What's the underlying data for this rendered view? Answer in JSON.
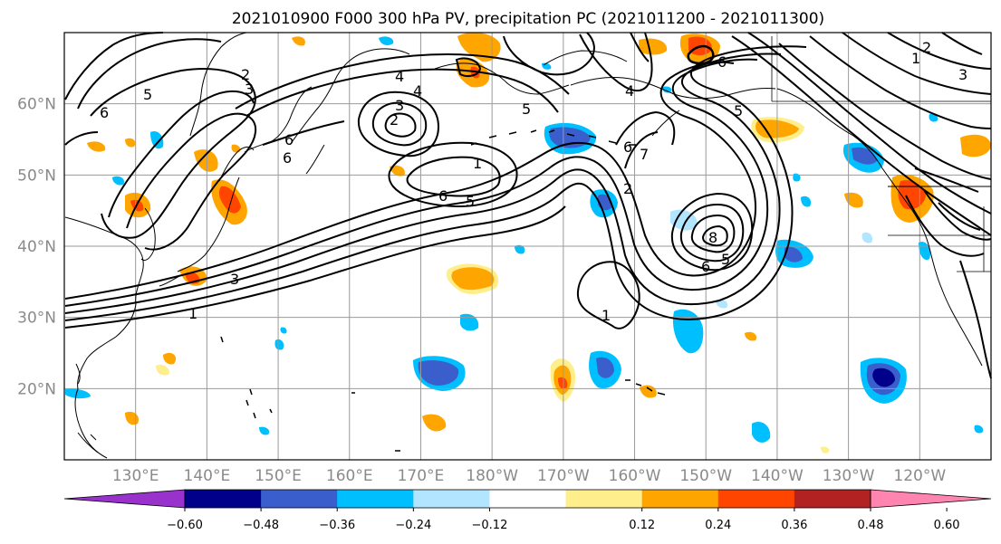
{
  "title": "2021010900 F000 300 hPa PV, precipitation PC (2021011200 - 2021011300)",
  "map": {
    "lon_ticks": [
      "130°E",
      "140°E",
      "150°E",
      "160°E",
      "170°E",
      "180°W",
      "170°W",
      "160°W",
      "150°W",
      "140°W",
      "130°W",
      "120°W"
    ],
    "lat_ticks": [
      "60°N",
      "50°N",
      "40°N",
      "30°N",
      "20°N"
    ],
    "lon_values": [
      130,
      140,
      150,
      160,
      170,
      180,
      190,
      200,
      210,
      220,
      230,
      240
    ],
    "lat_values": [
      60,
      50,
      40,
      30,
      20
    ],
    "lon_range": [
      120,
      250
    ],
    "lat_range": [
      10,
      70
    ],
    "gridlines": true,
    "tick_color": "#8a8a8a"
  },
  "pv_contour_labels": [
    "6",
    "2",
    "3",
    "5",
    "4",
    "4",
    "3",
    "2",
    "6",
    "6",
    "1",
    "6",
    "5",
    "1",
    "3",
    "5",
    "4",
    "6",
    "7",
    "1",
    "2",
    "8",
    "5",
    "6",
    "5",
    "1",
    "2",
    "3",
    "6"
  ],
  "colorbar": {
    "ticks": [
      "−0.60",
      "−0.48",
      "−0.36",
      "−0.24",
      "−0.12",
      "0.12",
      "0.24",
      "0.36",
      "0.48",
      "0.60"
    ],
    "colors": [
      "#9932cc",
      "#00008b",
      "#3a5fcd",
      "#00bfff",
      "#b2e5ff",
      "#ffffff",
      "#ffee8c",
      "#ffa500",
      "#ff4500",
      "#b22222",
      "#ff85b0"
    ]
  }
}
